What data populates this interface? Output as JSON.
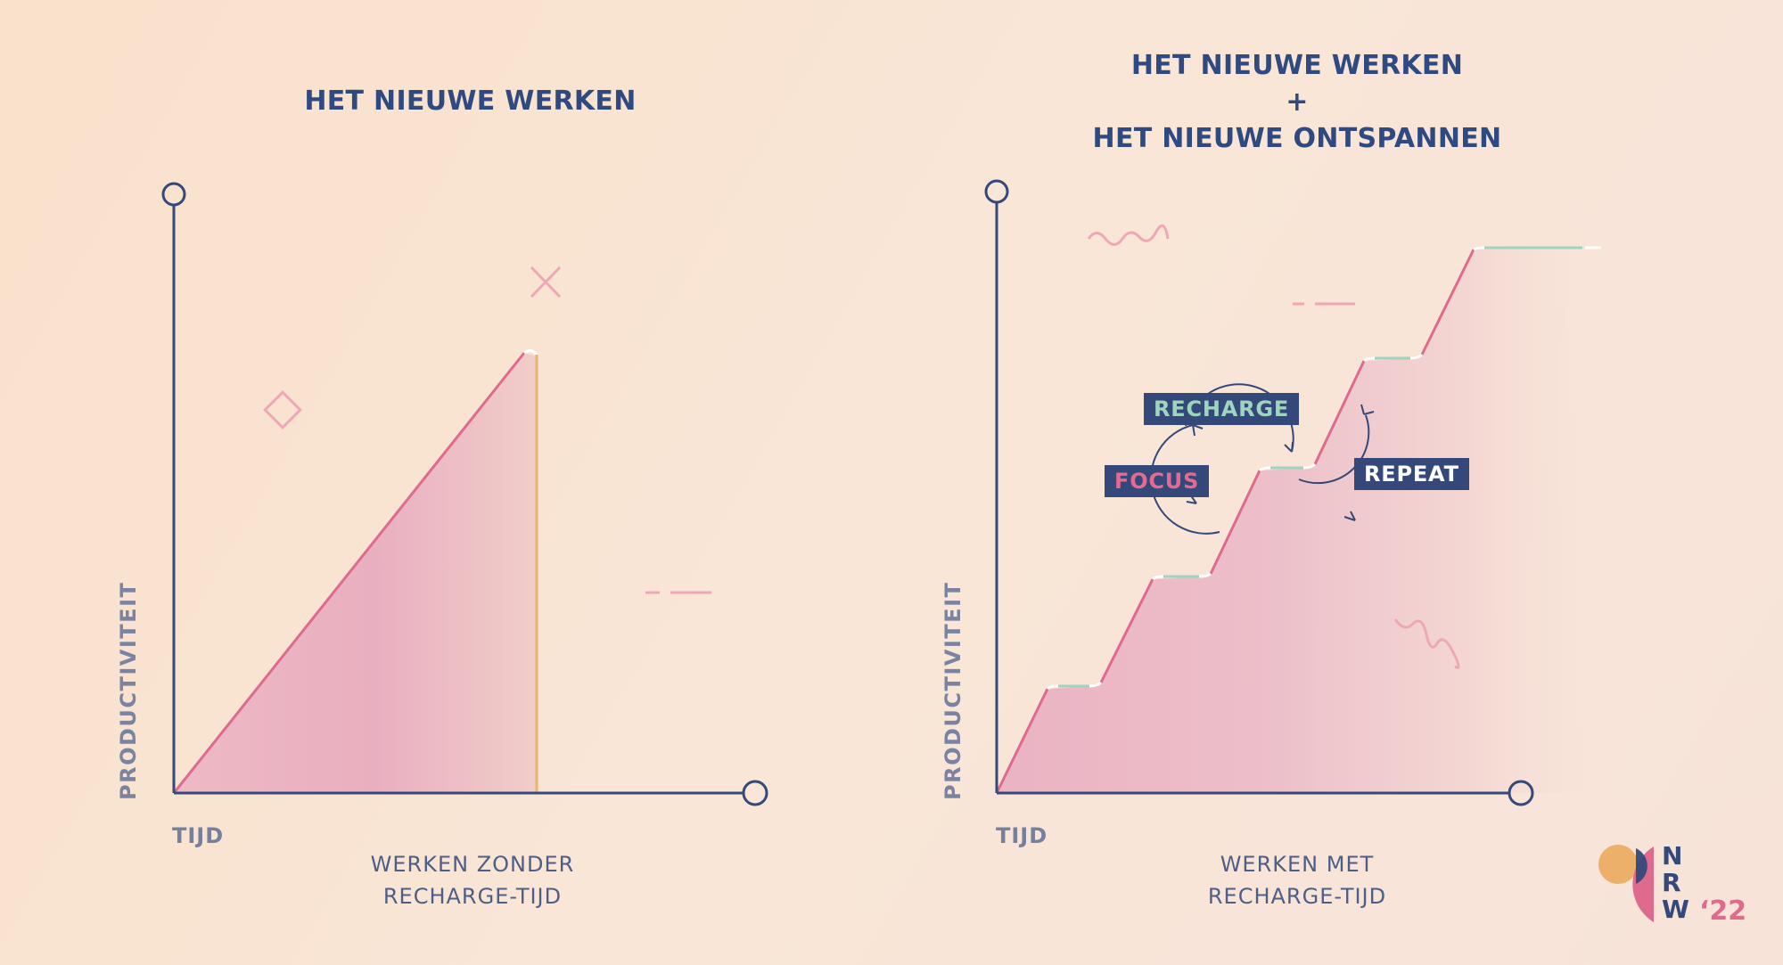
{
  "left_panel": {
    "title": "HET NIEUWE WERKEN",
    "y_axis_label": "PRODUCTIVITEIT",
    "origin_label": "TIJD",
    "caption": [
      "WERKEN ZONDER",
      "RECHARGE-TIJD"
    ]
  },
  "right_panel": {
    "title": [
      "HET NIEUWE WERKEN",
      "+",
      "HET NIEUWE ONTSPANNEN"
    ],
    "y_axis_label": "PRODUCTIVITEIT",
    "origin_label": "TIJD",
    "caption": [
      "WERKEN MET",
      "RECHARGE-TIJD"
    ],
    "cycle": {
      "recharge": "RECHARGE",
      "focus": "FOCUS",
      "repeat": "REPEAT"
    }
  },
  "logo": {
    "letters": [
      "N",
      "R",
      "W"
    ],
    "year": "‘22"
  },
  "colors": {
    "navy": "#2f4a80",
    "pink": "#de6b8e",
    "mint": "#9fd4bf",
    "orange": "#e8b56e"
  }
}
